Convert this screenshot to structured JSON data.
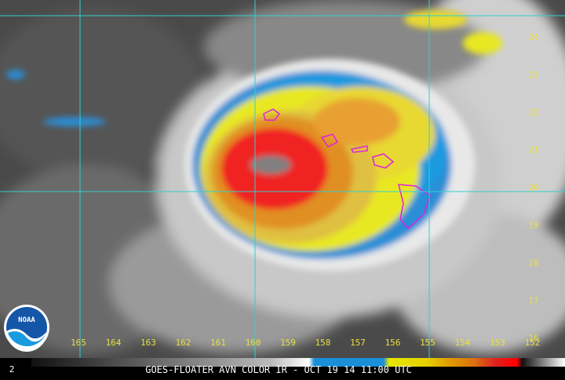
{
  "map": {
    "lon_labels": [
      "165",
      "164",
      "163",
      "162",
      "161",
      "160",
      "159",
      "158",
      "157",
      "156",
      "155",
      "154",
      "153",
      "152"
    ],
    "lat_labels": [
      "24",
      "23",
      "22",
      "21",
      "20",
      "19",
      "18",
      "17",
      "16"
    ],
    "logo": "NOAA",
    "frame_number": "2",
    "footer": "GOES-FLOATER AVN COLOR IR - OCT 19 14 11:00 UTC"
  }
}
